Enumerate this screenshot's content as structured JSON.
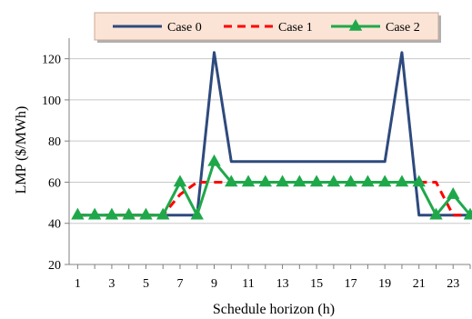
{
  "chart_data": {
    "type": "line",
    "title": "",
    "xlabel": "Schedule horizon (h)",
    "ylabel": "LMP ($/MWh)",
    "ylim": [
      20,
      130
    ],
    "yticks": [
      20,
      40,
      60,
      80,
      100,
      120
    ],
    "xlim": [
      0.5,
      24
    ],
    "x": [
      1,
      2,
      3,
      4,
      5,
      6,
      7,
      8,
      9,
      10,
      11,
      12,
      13,
      14,
      15,
      16,
      17,
      18,
      19,
      20,
      21,
      22,
      23,
      24
    ],
    "xtick_labels": [
      "1",
      "3",
      "5",
      "7",
      "9",
      "11",
      "13",
      "15",
      "17",
      "19",
      "21",
      "23"
    ],
    "grid": true,
    "legend_position": "top",
    "series": [
      {
        "name": "Case 0",
        "color": "#2e4a7d",
        "style": "solid",
        "marker": "none",
        "values": [
          44,
          44,
          44,
          44,
          44,
          44,
          44,
          44,
          123,
          70,
          70,
          70,
          70,
          70,
          70,
          70,
          70,
          70,
          70,
          123,
          44,
          44,
          44,
          44
        ]
      },
      {
        "name": "Case 1",
        "color": "#ff0000",
        "style": "dashed",
        "marker": "none",
        "values": [
          44,
          44,
          44,
          44,
          44,
          44,
          54,
          60,
          60,
          60,
          60,
          60,
          60,
          60,
          60,
          60,
          60,
          60,
          60,
          60,
          60,
          60,
          44,
          44
        ]
      },
      {
        "name": "Case 2",
        "color": "#1fa84a",
        "style": "solid",
        "marker": "triangle",
        "values": [
          44,
          44,
          44,
          44,
          44,
          44,
          60,
          44,
          70,
          60,
          60,
          60,
          60,
          60,
          60,
          60,
          60,
          60,
          60,
          60,
          60,
          44,
          54,
          44
        ]
      }
    ]
  }
}
